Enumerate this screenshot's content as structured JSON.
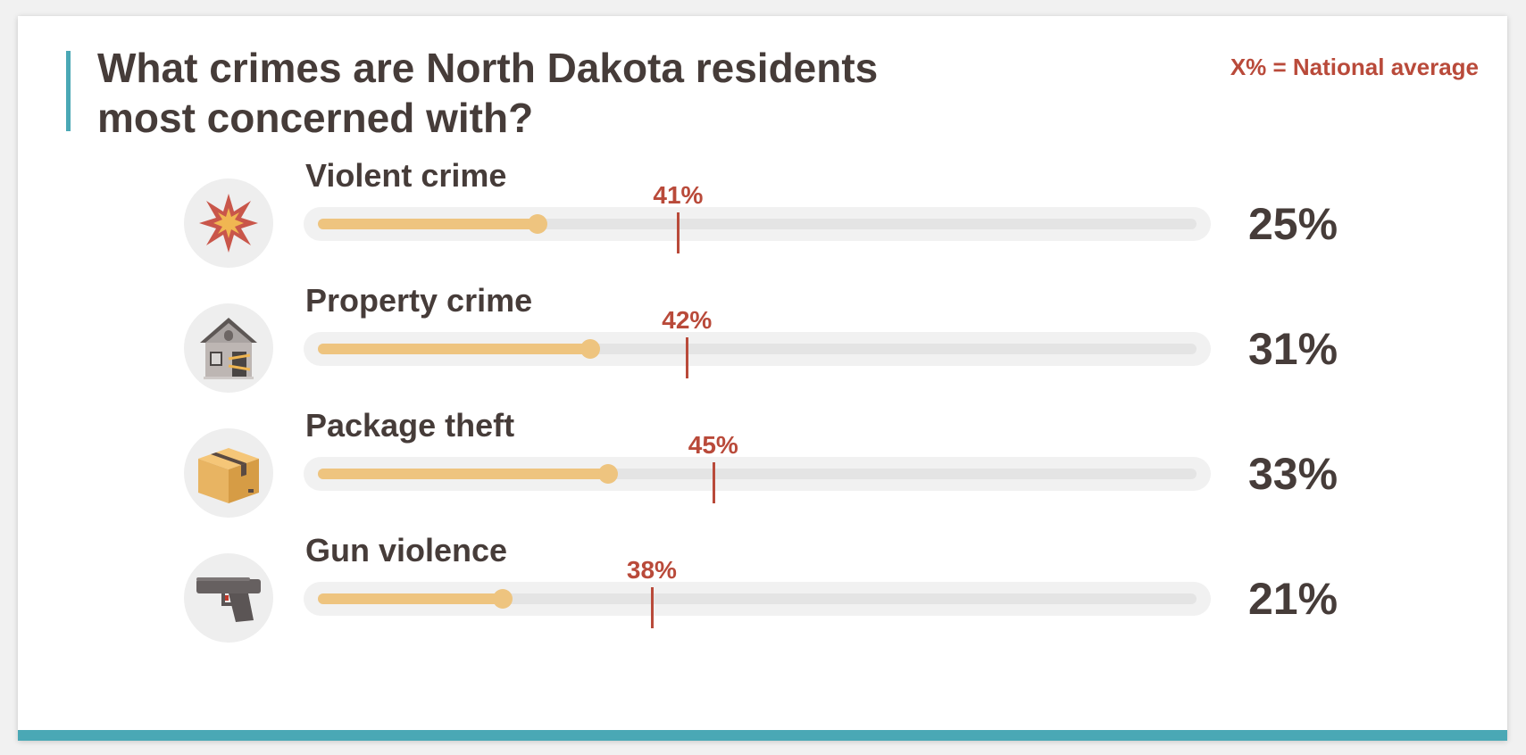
{
  "title": "What crimes are North Dakota residents most concerned with?",
  "legend_note": "X% = National average",
  "colors": {
    "accent_teal": "#4aa8b5",
    "bar_fill": "#eec47f",
    "national_marker": "#b94a3a",
    "text_dark": "#463c39",
    "track": "#e4e4e4"
  },
  "chart_data": {
    "type": "bar",
    "orientation": "horizontal",
    "xlim": [
      0,
      100
    ],
    "categories": [
      "Violent crime",
      "Property crime",
      "Package theft",
      "Gun violence"
    ],
    "series": [
      {
        "values": [
          25,
          31,
          33,
          21
        ]
      },
      {
        "name": "National average",
        "values": [
          41,
          42,
          45,
          38
        ]
      }
    ],
    "icons": [
      "explosion-icon",
      "house-icon",
      "package-icon",
      "gun-icon"
    ],
    "value_labels": [
      "25%",
      "31%",
      "33%",
      "21%"
    ],
    "national_labels": [
      "41%",
      "42%",
      "45%",
      "38%"
    ]
  }
}
